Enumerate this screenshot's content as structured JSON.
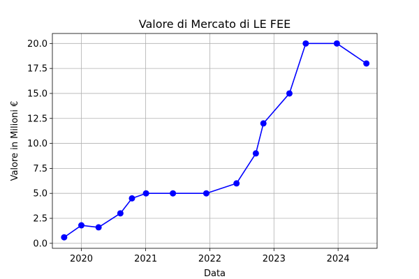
{
  "chart_data": {
    "type": "line",
    "title": "Valore di Mercato di LE FEE",
    "xlabel": "Data",
    "ylabel": "Valore in Milioni €",
    "x_ticks": [
      "2020",
      "2021",
      "2022",
      "2023",
      "2024"
    ],
    "y_ticks": [
      "0.0",
      "2.5",
      "5.0",
      "7.5",
      "10.0",
      "12.5",
      "15.0",
      "17.5",
      "20.0"
    ],
    "xlim": [
      "2019-07-20",
      "2024-08-10"
    ],
    "ylim": [
      -0.5,
      21.0
    ],
    "grid": true,
    "series": [
      {
        "color": "#0000ff",
        "marker": "circle",
        "points": [
          {
            "x": "2019-09-25",
            "y": 0.6
          },
          {
            "x": "2020-01-01",
            "y": 1.8
          },
          {
            "x": "2020-04-08",
            "y": 1.6
          },
          {
            "x": "2020-08-10",
            "y": 3.0
          },
          {
            "x": "2020-10-15",
            "y": 4.5
          },
          {
            "x": "2021-01-03",
            "y": 5.0
          },
          {
            "x": "2021-06-05",
            "y": 5.0
          },
          {
            "x": "2021-12-12",
            "y": 5.0
          },
          {
            "x": "2022-06-02",
            "y": 6.0
          },
          {
            "x": "2022-09-20",
            "y": 9.0
          },
          {
            "x": "2022-11-02",
            "y": 12.0
          },
          {
            "x": "2023-03-30",
            "y": 15.0
          },
          {
            "x": "2023-07-01",
            "y": 20.0
          },
          {
            "x": "2023-12-25",
            "y": 20.0
          },
          {
            "x": "2024-06-10",
            "y": 18.0
          }
        ]
      }
    ]
  }
}
